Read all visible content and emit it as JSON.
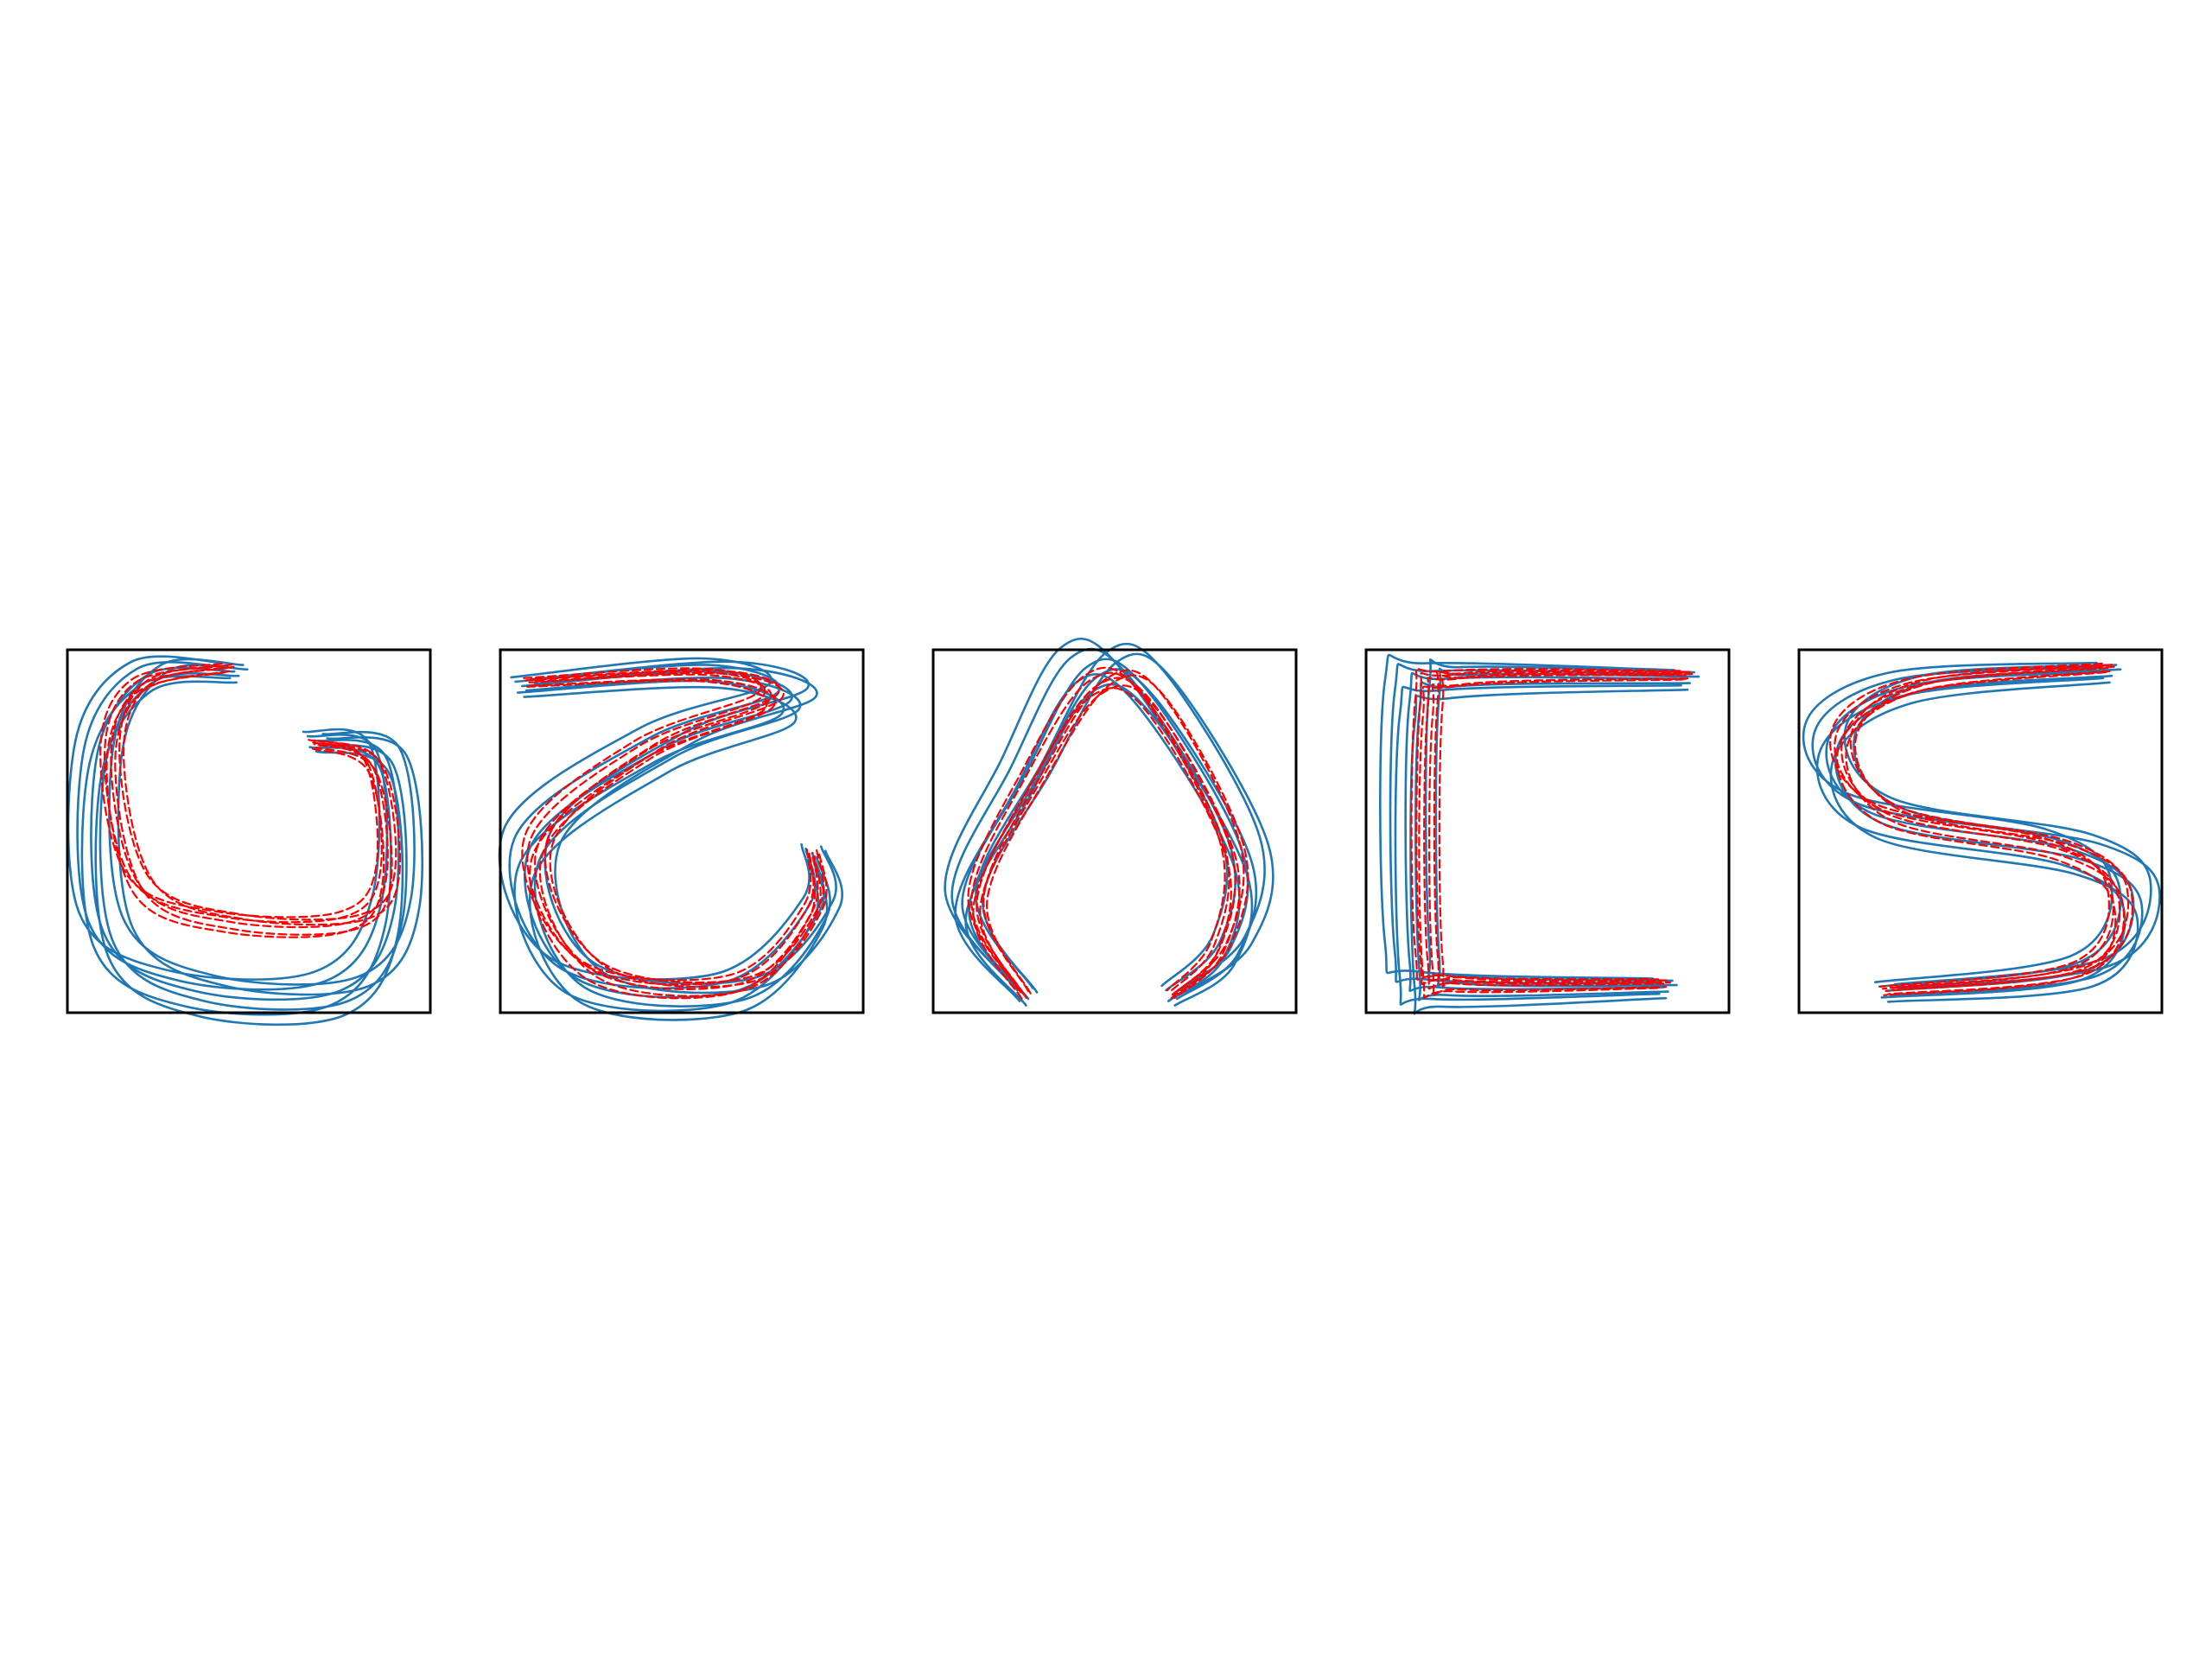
{
  "figure": {
    "description_free": true
  },
  "colors": {
    "demonstration": "#1f77b4",
    "reproduction": "#ff0000",
    "frame": "#000000"
  },
  "chart_data": [
    {
      "type": "line",
      "grid": false,
      "axes_visible": false,
      "xlim": [
        0,
        100
      ],
      "ylim": [
        0,
        100
      ],
      "series": [
        {
          "style": "solid",
          "color": "#1f77b4",
          "x": [
            46,
            22,
            8,
            10,
            35,
            75,
            90,
            88,
            68
          ],
          "y": [
            94,
            93,
            70,
            22,
            6,
            6,
            28,
            70,
            75
          ]
        },
        {
          "style": "dashed",
          "color": "#ff0000",
          "x": [
            44,
            20,
            12,
            20,
            45,
            78,
            88,
            84,
            68
          ],
          "y": [
            95,
            90,
            70,
            35,
            25,
            25,
            38,
            68,
            74
          ]
        }
      ]
    },
    {
      "type": "line",
      "grid": false,
      "axes_visible": false,
      "xlim": [
        0,
        100
      ],
      "ylim": [
        0,
        100
      ],
      "series": [
        {
          "style": "solid",
          "color": "#1f77b4",
          "x": [
            6,
            60,
            80,
            45,
            8,
            20,
            65,
            88,
            86
          ],
          "y": [
            90,
            94,
            86,
            73,
            45,
            10,
            6,
            28,
            44
          ]
        },
        {
          "style": "dashed",
          "color": "#ff0000",
          "x": [
            8,
            58,
            74,
            40,
            10,
            25,
            66,
            86,
            86
          ],
          "y": [
            91,
            93,
            86,
            72,
            45,
            12,
            8,
            28,
            44
          ]
        }
      ]
    },
    {
      "type": "line",
      "grid": false,
      "axes_visible": false,
      "xlim": [
        0,
        100
      ],
      "ylim": [
        0,
        100
      ],
      "series": [
        {
          "style": "solid",
          "color": "#1f77b4",
          "x": [
            25,
            8,
            25,
            42,
            58,
            85,
            82,
            66
          ],
          "y": [
            5,
            30,
            65,
            95,
            90,
            45,
            18,
            5
          ]
        },
        {
          "style": "dashed",
          "color": "#ff0000",
          "x": [
            25,
            12,
            28,
            45,
            60,
            82,
            79,
            66
          ],
          "y": [
            5,
            30,
            65,
            90,
            86,
            45,
            18,
            5
          ]
        }
      ]
    },
    {
      "type": "line",
      "grid": false,
      "axes_visible": false,
      "xlim": [
        0,
        100
      ],
      "ylim": [
        0,
        100
      ],
      "series": [
        {
          "style": "solid",
          "color": "#1f77b4",
          "x": [
            88,
            22,
            12,
            12,
            20,
            82
          ],
          "y": [
            92,
            92,
            86,
            14,
            7,
            7
          ]
        },
        {
          "style": "dashed",
          "color": "#ff0000",
          "x": [
            88,
            25,
            17,
            17,
            25,
            82
          ],
          "y": [
            93,
            92,
            84,
            14,
            8,
            8
          ]
        }
      ]
    },
    {
      "type": "line",
      "grid": false,
      "axes_visible": false,
      "xlim": [
        0,
        100
      ],
      "ylim": [
        0,
        100
      ],
      "series": [
        {
          "style": "solid",
          "color": "#1f77b4",
          "x": [
            85,
            30,
            8,
            20,
            75,
            92,
            80,
            24
          ],
          "y": [
            94,
            90,
            75,
            55,
            45,
            32,
            12,
            6
          ]
        },
        {
          "style": "dashed",
          "color": "#ff0000",
          "x": [
            85,
            32,
            12,
            24,
            72,
            88,
            78,
            24
          ],
          "y": [
            95,
            90,
            75,
            55,
            45,
            32,
            12,
            6
          ]
        }
      ]
    }
  ]
}
